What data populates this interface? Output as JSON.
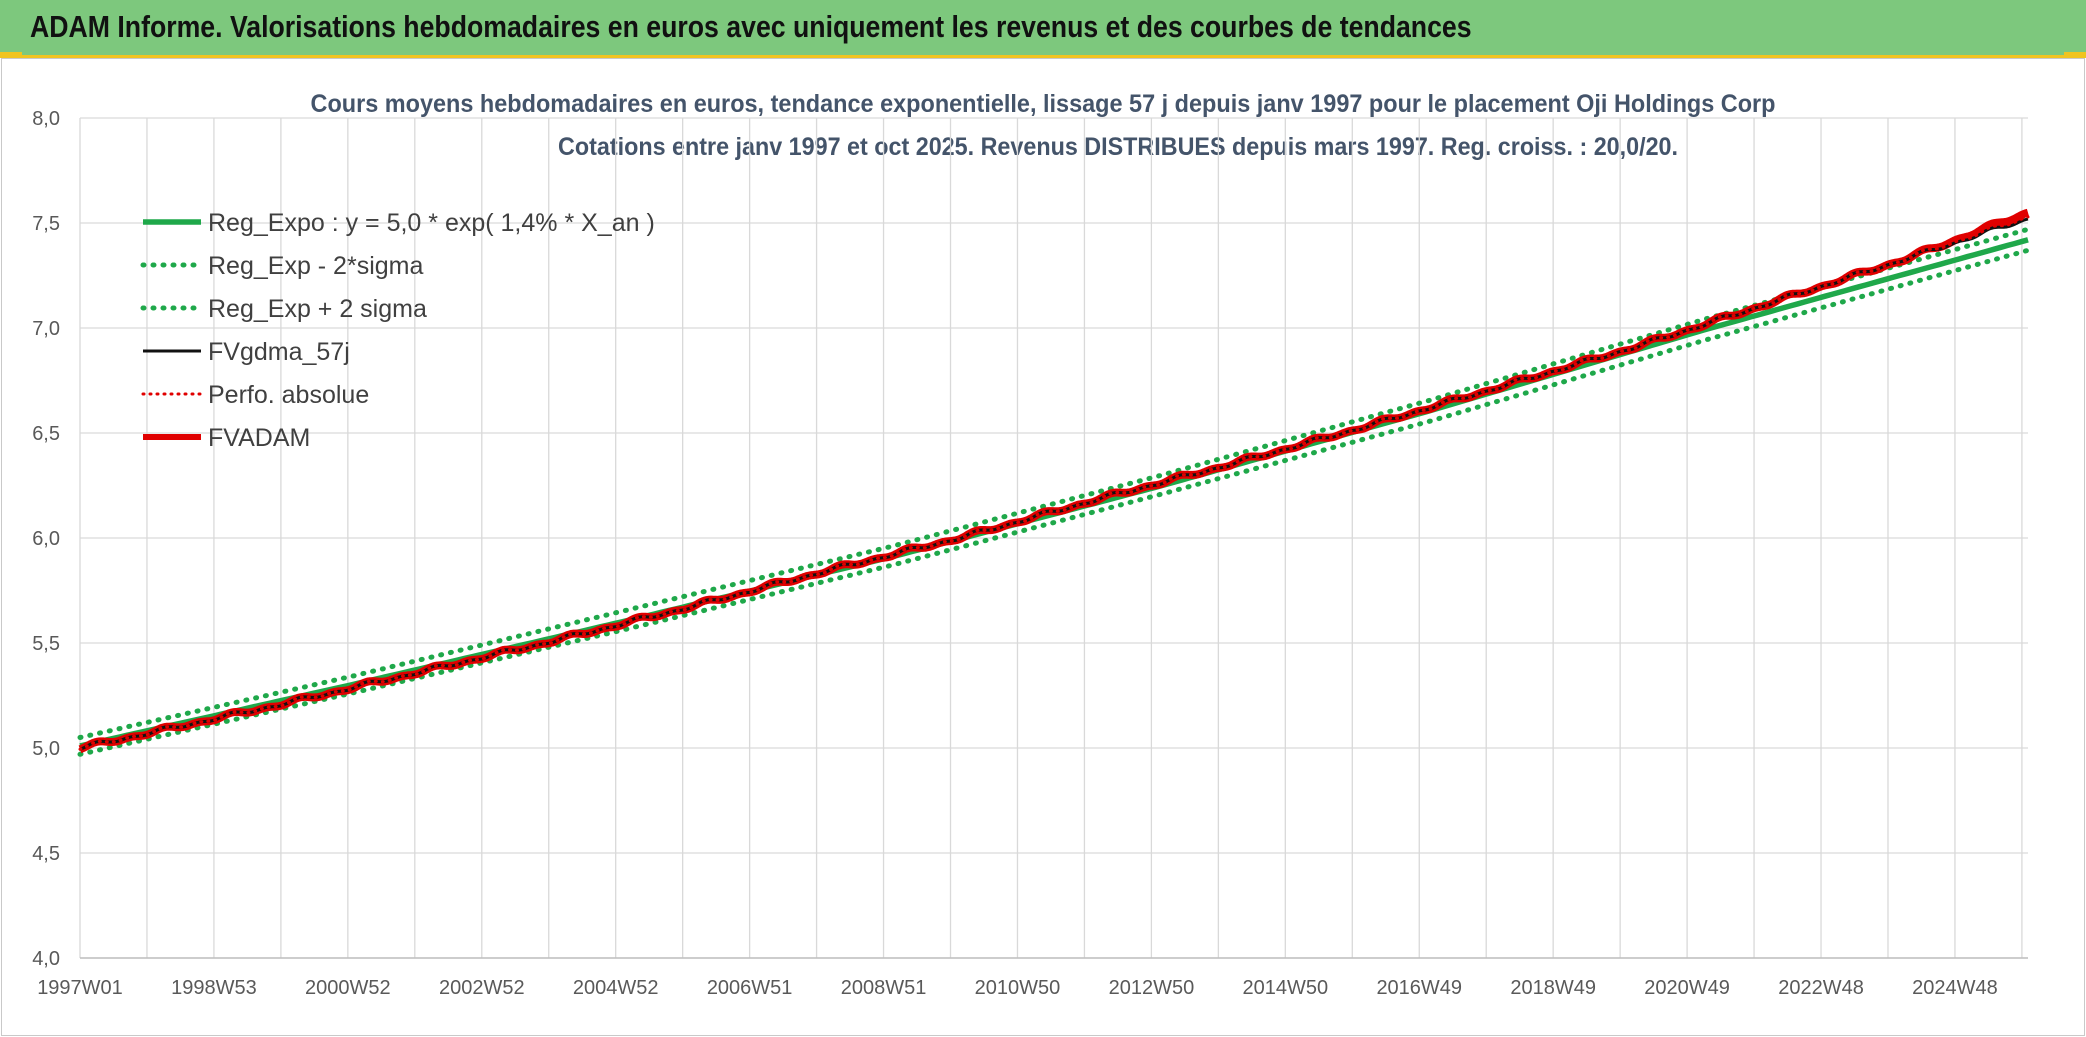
{
  "banner": {
    "title": "ADAM Informe. Valorisations hebdomadaires en euros avec uniquement les revenus et des courbes de tendances"
  },
  "chart_data": {
    "type": "line",
    "title": "Cours moyens hebdomadaires en euros, tendance exponentielle, lissage 57 j depuis janv 1997 pour le placement Oji Holdings Corp",
    "subtitle": "Cotations entre janv 1997 et oct 2025. Revenus DISTRIBUES depuis mars 1997. Reg. croiss. : 20,0/20.",
    "ylim": [
      4.0,
      8.0
    ],
    "y_ticks": [
      "4,0",
      "4,5",
      "5,0",
      "5,5",
      "6,0",
      "6,5",
      "7,0",
      "7,5",
      "8,0"
    ],
    "x_range_years": [
      1997.0,
      2025.8
    ],
    "x_tick_labels": [
      "1997W01",
      "1998W53",
      "2000W52",
      "2002W52",
      "2004W52",
      "2006W51",
      "2008W51",
      "2010W50",
      "2012W50",
      "2014W50",
      "2016W49",
      "2018W49",
      "2020W49",
      "2022W48",
      "2024W48"
    ],
    "grid": true,
    "legend_position": "top-left",
    "series": [
      {
        "name": "Reg_Expo : y = 5,0 * exp( 1,4% *  X_an )",
        "color": "#1fa84a",
        "style": "solid",
        "x": [
          1997.0,
          2001.0,
          2005.0,
          2009.0,
          2013.0,
          2017.0,
          2021.0,
          2025.8
        ],
        "values": [
          5.01,
          5.3,
          5.6,
          5.91,
          6.25,
          6.61,
          6.99,
          7.42
        ]
      },
      {
        "name": "Reg_Exp - 2*sigma",
        "color": "#1fa84a",
        "style": "dotted",
        "x": [
          1997.0,
          2001.0,
          2005.0,
          2009.0,
          2013.0,
          2017.0,
          2021.0,
          2025.8
        ],
        "values": [
          4.97,
          5.26,
          5.56,
          5.87,
          6.21,
          6.56,
          6.94,
          7.37
        ]
      },
      {
        "name": "Reg_Exp + 2 sigma",
        "color": "#1fa84a",
        "style": "dotted",
        "x": [
          1997.0,
          2001.0,
          2005.0,
          2009.0,
          2013.0,
          2017.0,
          2021.0,
          2025.8
        ],
        "values": [
          5.05,
          5.34,
          5.65,
          5.96,
          6.3,
          6.66,
          7.04,
          7.47
        ]
      },
      {
        "name": "FVgdma_57j",
        "color": "#111111",
        "style": "solid",
        "x": [
          1997.0,
          1998.0,
          2000.0,
          2002.0,
          2004.0,
          2006.0,
          2008.0,
          2010.0,
          2012.0,
          2014.0,
          2016.0,
          2018.0,
          2020.0,
          2022.0,
          2024.0,
          2025.8
        ],
        "values": [
          5.0,
          5.07,
          5.21,
          5.36,
          5.51,
          5.67,
          5.84,
          6.0,
          6.18,
          6.35,
          6.53,
          6.72,
          6.91,
          7.12,
          7.33,
          7.52
        ]
      },
      {
        "name": "Perfo. absolue",
        "color": "#e00000",
        "style": "dotted",
        "x": [
          1997.0,
          1998.0,
          2000.0,
          2002.0,
          2004.0,
          2006.0,
          2008.0,
          2010.0,
          2012.0,
          2014.0,
          2016.0,
          2018.0,
          2020.0,
          2022.0,
          2024.0,
          2025.8
        ],
        "values": [
          5.0,
          5.07,
          5.21,
          5.36,
          5.51,
          5.67,
          5.84,
          6.0,
          6.18,
          6.35,
          6.53,
          6.72,
          6.91,
          7.12,
          7.33,
          7.53
        ]
      },
      {
        "name": "FVADAM",
        "color": "#e00000",
        "style": "solid",
        "x": [
          1997.0,
          1998.0,
          2000.0,
          2002.0,
          2004.0,
          2006.0,
          2008.0,
          2010.0,
          2012.0,
          2014.0,
          2016.0,
          2018.0,
          2020.0,
          2022.0,
          2024.0,
          2025.8
        ],
        "values": [
          5.0,
          5.07,
          5.21,
          5.36,
          5.51,
          5.67,
          5.84,
          6.0,
          6.18,
          6.35,
          6.53,
          6.72,
          6.91,
          7.12,
          7.33,
          7.55
        ]
      }
    ]
  }
}
